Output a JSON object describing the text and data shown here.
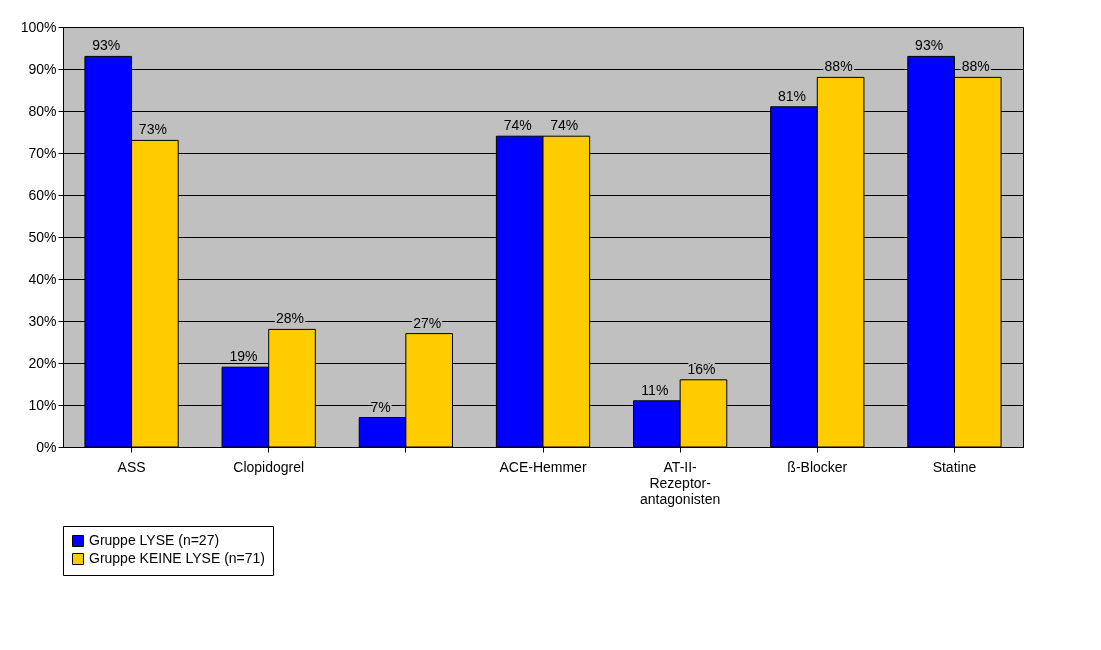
{
  "chart_data": {
    "type": "bar",
    "categories": [
      "ASS",
      "Clopidogrel",
      null,
      "ACE-Hemmer",
      "AT-II-\nRezeptor-\nantagonisten",
      "ß-Blocker",
      "Statine"
    ],
    "series": [
      {
        "name": "Gruppe LYSE (n=27)",
        "color": "#0000ff",
        "values": [
          93,
          19,
          7,
          74,
          11,
          81,
          93
        ],
        "value_labels": [
          "93%",
          "19%",
          "7%",
          "74%",
          "11%",
          "81%",
          "93%"
        ]
      },
      {
        "name": "Gruppe KEINE LYSE (n=71)",
        "color": "#ffcc00",
        "values": [
          73,
          28,
          27,
          74,
          16,
          88,
          88
        ],
        "value_labels": [
          "73%",
          "28%",
          "27%",
          "74%",
          "16%",
          "88%",
          "88%"
        ]
      }
    ],
    "ylim": [
      0,
      100
    ],
    "yticks": [
      {
        "value": 0,
        "label": "0%"
      },
      {
        "value": 10,
        "label": "10%"
      },
      {
        "value": 20,
        "label": "20%"
      },
      {
        "value": 30,
        "label": "30%"
      },
      {
        "value": 40,
        "label": "40%"
      },
      {
        "value": 50,
        "label": "50%"
      },
      {
        "value": 60,
        "label": "60%"
      },
      {
        "value": 70,
        "label": "70%"
      },
      {
        "value": 80,
        "label": "80%"
      },
      {
        "value": 90,
        "label": "90%"
      },
      {
        "value": 100,
        "label": "100%"
      }
    ],
    "grid": "y",
    "legend": "bottom"
  }
}
